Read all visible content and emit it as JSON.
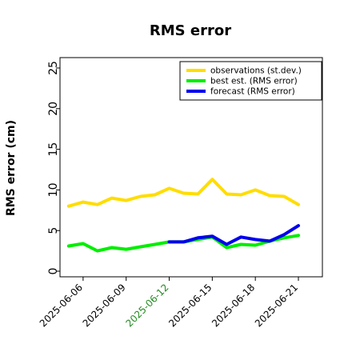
{
  "chart_data": {
    "type": "line",
    "title": "RMS error",
    "ylabel": "RMS error (cm)",
    "xlabel": "",
    "ylim": [
      0,
      26
    ],
    "yticks": [
      0,
      5,
      10,
      15,
      20,
      25
    ],
    "xlim": [
      "2025-06-04",
      "2025-06-21"
    ],
    "xticks": [
      "2025-06-06",
      "2025-06-09",
      "2025-06-12",
      "2025-06-15",
      "2025-06-18",
      "2025-06-21"
    ],
    "highlighted_xtick": "2025-06-12",
    "highlight_color": "#228b22",
    "grid": false,
    "legend_position": "top-right",
    "series": [
      {
        "name": "observations (st.dev.)",
        "color": "#ffdd00",
        "x": [
          "2025-06-05",
          "2025-06-06",
          "2025-06-07",
          "2025-06-08",
          "2025-06-09",
          "2025-06-10",
          "2025-06-11",
          "2025-06-12",
          "2025-06-13",
          "2025-06-14",
          "2025-06-15",
          "2025-06-16",
          "2025-06-17",
          "2025-06-18",
          "2025-06-19",
          "2025-06-20",
          "2025-06-21"
        ],
        "values": [
          8.0,
          8.5,
          8.2,
          9.0,
          8.7,
          9.2,
          9.4,
          10.2,
          9.6,
          9.5,
          11.3,
          9.5,
          9.4,
          10.0,
          9.3,
          9.2,
          8.2
        ]
      },
      {
        "name": "best est. (RMS error)",
        "color": "#00ee00",
        "x": [
          "2025-06-05",
          "2025-06-06",
          "2025-06-07",
          "2025-06-08",
          "2025-06-09",
          "2025-06-10",
          "2025-06-11",
          "2025-06-12",
          "2025-06-13",
          "2025-06-14",
          "2025-06-15",
          "2025-06-16",
          "2025-06-17",
          "2025-06-18",
          "2025-06-19",
          "2025-06-20",
          "2025-06-21"
        ],
        "values": [
          3.1,
          3.4,
          2.5,
          2.9,
          2.7,
          3.0,
          3.3,
          3.6,
          3.6,
          3.9,
          4.2,
          2.9,
          3.3,
          3.2,
          3.7,
          4.1,
          4.4
        ]
      },
      {
        "name": "forecast (RMS error)",
        "color": "#0000ee",
        "x": [
          "2025-06-12",
          "2025-06-13",
          "2025-06-14",
          "2025-06-15",
          "2025-06-16",
          "2025-06-17",
          "2025-06-18",
          "2025-06-19",
          "2025-06-20",
          "2025-06-21"
        ],
        "values": [
          3.6,
          3.6,
          4.1,
          4.3,
          3.3,
          4.2,
          3.9,
          3.7,
          4.5,
          5.6
        ]
      }
    ]
  }
}
